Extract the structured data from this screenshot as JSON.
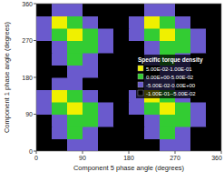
{
  "chart_data": {
    "type": "heatmap",
    "x_label": "Component 5 phase angle (degrees)",
    "y_label": "Component 1 phase angle (degrees)",
    "xlim": [
      0,
      360
    ],
    "ylim": [
      0,
      360
    ],
    "xticks": [
      0,
      90,
      180,
      270,
      360
    ],
    "yticks": [
      0,
      90,
      180,
      270,
      360
    ],
    "legend": "upper right",
    "legend_title": "Specific torque density",
    "bins": [
      {
        "min": 0.05,
        "max": 0.1,
        "label": "5.00E-02-1.00E-01",
        "color": "#f0f000"
      },
      {
        "min": 0,
        "max": 0.05,
        "label": "0.00E+00-5.00E-02",
        "color": "#33cc33"
      },
      {
        "min": -0.05,
        "max": 0,
        "label": "-5.00E-02-0.00E+00",
        "color": "#6a5acd"
      },
      {
        "min": -0.1,
        "max": -0.05,
        "label": "-1.00E-01--5.00E-02",
        "color": "#000000"
      }
    ],
    "cells": [
      [
        -0.075,
        -0.075,
        -0.025,
        -0.025,
        -0.075,
        -0.075,
        -0.075,
        -0.075,
        -0.025,
        -0.025,
        -0.075,
        -0.075
      ],
      [
        -0.075,
        -0.025,
        0.025,
        -0.025,
        -0.075,
        -0.075,
        -0.075,
        -0.025,
        0.025,
        -0.025,
        -0.075,
        -0.075
      ],
      [
        -0.075,
        -0.025,
        0.025,
        0.025,
        -0.025,
        -0.075,
        -0.075,
        -0.025,
        0.025,
        0.025,
        -0.025,
        -0.075
      ],
      [
        -0.025,
        0.025,
        0.075,
        0.025,
        -0.025,
        -0.075,
        -0.025,
        0.025,
        0.075,
        0.025,
        -0.025,
        -0.075
      ],
      [
        -0.025,
        0.075,
        0.025,
        -0.025,
        -0.075,
        -0.075,
        -0.025,
        0.075,
        0.025,
        -0.025,
        -0.075,
        -0.075
      ],
      [
        -0.075,
        -0.025,
        -0.025,
        -0.075,
        -0.075,
        -0.075,
        -0.075,
        -0.025,
        -0.025,
        -0.075,
        -0.075,
        -0.075
      ],
      [
        -0.075,
        -0.075,
        -0.025,
        -0.025,
        -0.075,
        -0.075,
        -0.075,
        -0.075,
        -0.025,
        -0.025,
        -0.075,
        -0.075
      ],
      [
        -0.075,
        -0.025,
        0.025,
        -0.025,
        -0.075,
        -0.075,
        -0.075,
        -0.025,
        0.025,
        -0.025,
        -0.075,
        -0.075
      ],
      [
        -0.075,
        -0.025,
        0.025,
        0.025,
        -0.025,
        -0.075,
        -0.075,
        -0.025,
        0.025,
        0.025,
        -0.025,
        -0.075
      ],
      [
        -0.025,
        0.025,
        0.075,
        0.025,
        -0.025,
        -0.075,
        -0.025,
        0.025,
        0.075,
        0.025,
        -0.025,
        -0.075
      ],
      [
        -0.025,
        0.075,
        0.025,
        -0.025,
        -0.075,
        -0.075,
        -0.025,
        0.075,
        0.025,
        -0.025,
        -0.075,
        -0.075
      ],
      [
        -0.075,
        -0.025,
        -0.025,
        -0.075,
        -0.075,
        -0.075,
        -0.075,
        -0.025,
        -0.025,
        -0.075,
        -0.075,
        -0.075
      ]
    ]
  }
}
